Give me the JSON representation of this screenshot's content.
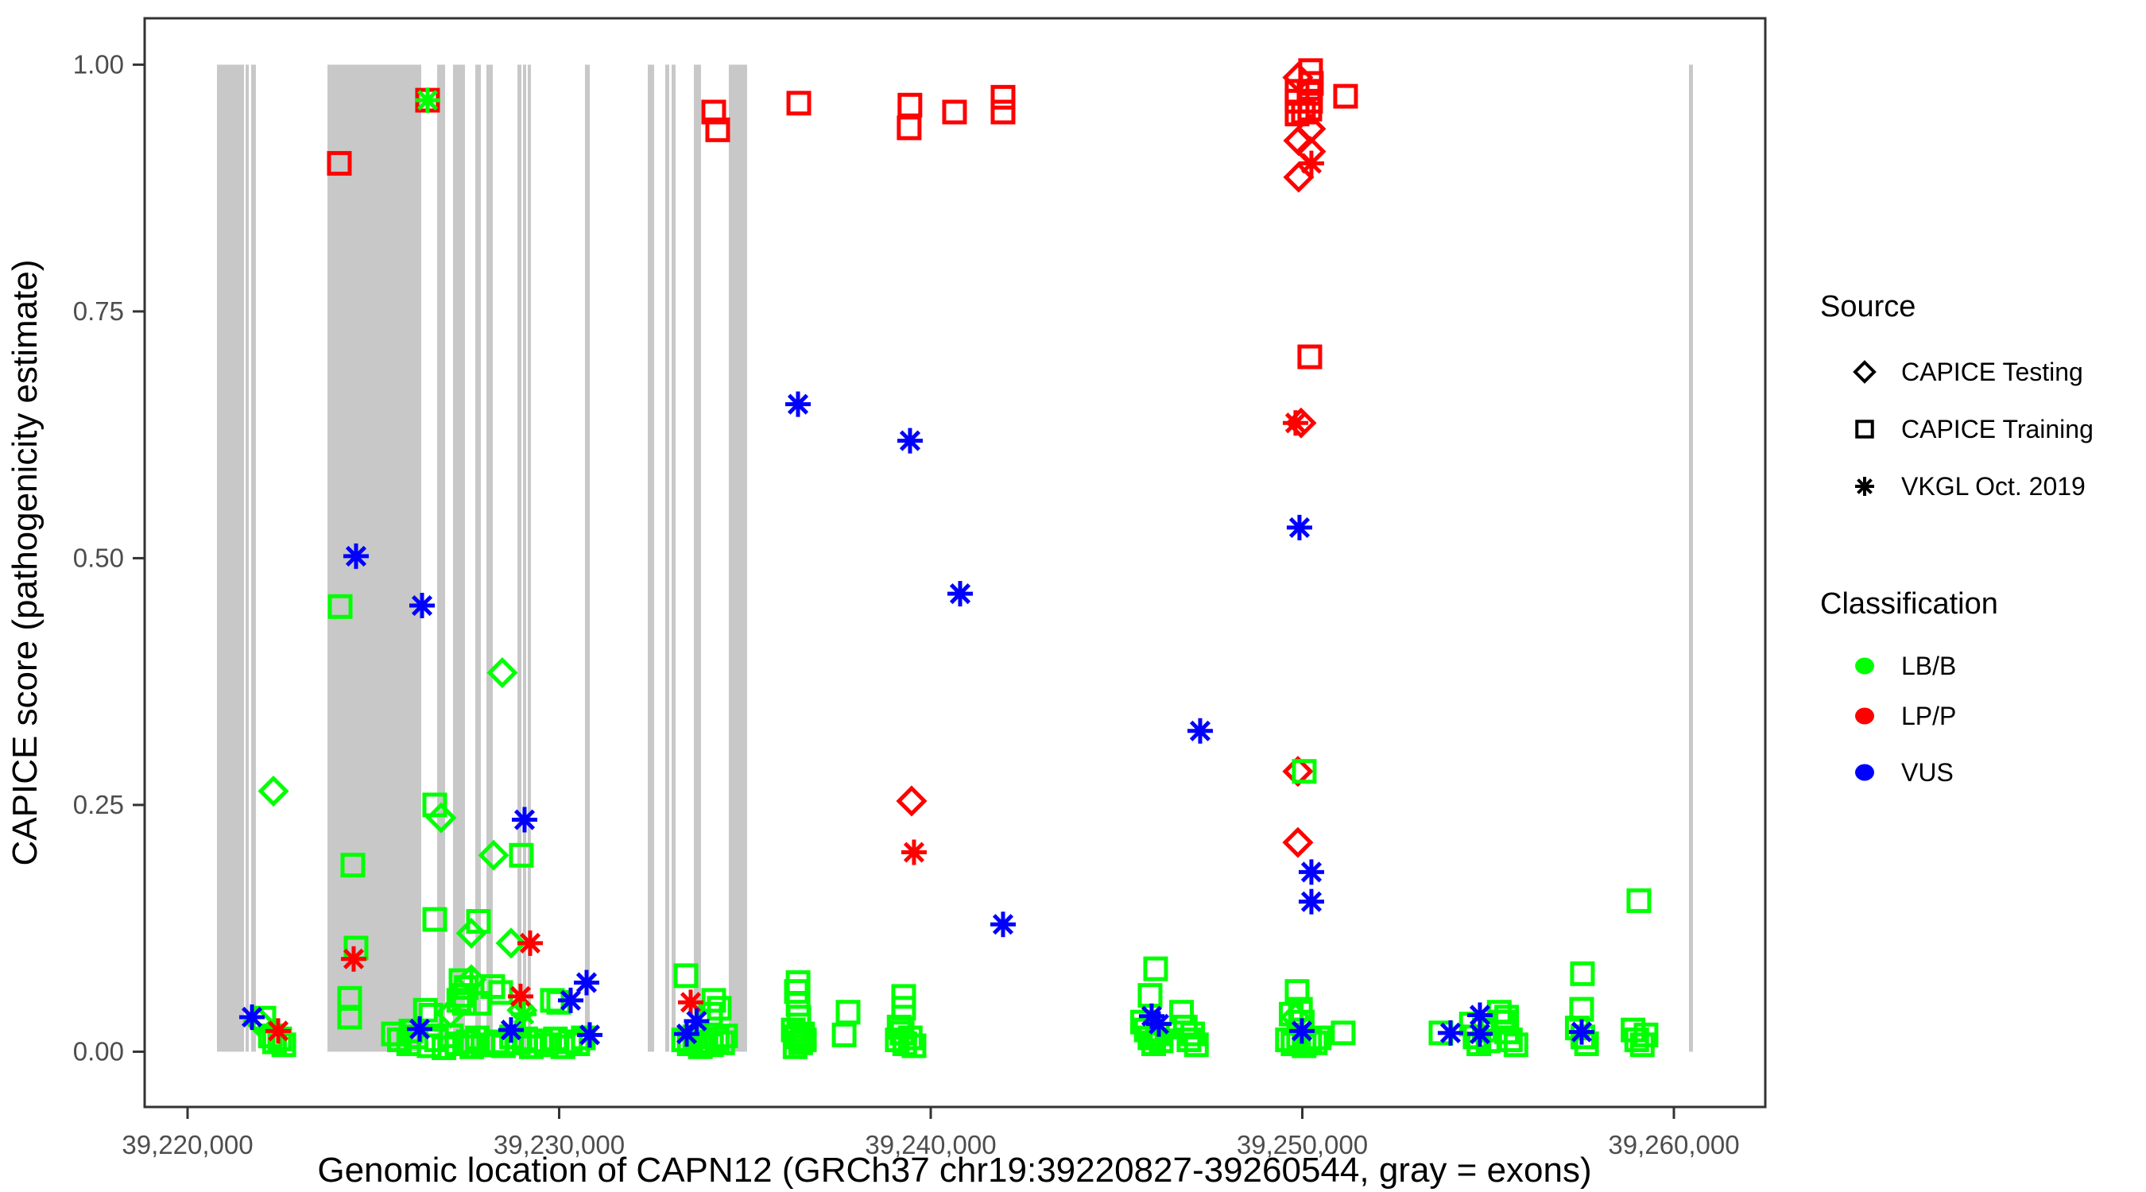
{
  "figure_title": "",
  "legend": {
    "source_title": "Source",
    "source_items": [
      {
        "label": "CAPICE Testing",
        "shape": "diamond"
      },
      {
        "label": "CAPICE Training",
        "shape": "square"
      },
      {
        "label": "VKGL Oct. 2019",
        "shape": "asterisk"
      }
    ],
    "classification_title": "Classification",
    "classification_items": [
      {
        "label": "LB/B",
        "color": "#00FF00"
      },
      {
        "label": "LP/P",
        "color": "#FF0000"
      },
      {
        "label": "VUS",
        "color": "#0000FF"
      }
    ]
  },
  "colors": {
    "lb_b": "#00FF00",
    "lp_p": "#FF0000",
    "vus": "#0000FF",
    "exon_gray": "#C8C8C8",
    "panel_border": "#333333",
    "tick_text": "#4D4D4D"
  },
  "chart_data": {
    "type": "scatter",
    "title": "",
    "xlabel": "Genomic location of CAPN12 (GRCh37 chr19:39220827-39260544, gray = exons)",
    "ylabel": "CAPICE score (pathogenicity estimate)",
    "x_domain": [
      39218845,
      39262460
    ],
    "y_domain": [
      -0.056,
      1.047
    ],
    "grid": false,
    "legend_position": "right",
    "x_ticks": [
      {
        "v": 39220000,
        "label": "39,220,000"
      },
      {
        "v": 39230000,
        "label": "39,230,000"
      },
      {
        "v": 39240000,
        "label": "39,240,000"
      },
      {
        "v": 39250000,
        "label": "39,250,000"
      },
      {
        "v": 39260000,
        "label": "39,260,000"
      }
    ],
    "y_ticks": [
      {
        "v": 0.0,
        "label": "0.00"
      },
      {
        "v": 0.25,
        "label": "0.25"
      },
      {
        "v": 0.5,
        "label": "0.50"
      },
      {
        "v": 0.75,
        "label": "0.75"
      },
      {
        "v": 1.0,
        "label": "1.00"
      }
    ],
    "exons_note": "gray vertical bands = exons of CAPN12, drawn from score 0 to 1",
    "exons": [
      [
        39220791,
        39221519
      ],
      [
        39221561,
        39221647
      ],
      [
        39221711,
        39221839
      ],
      [
        39223765,
        39226289
      ],
      [
        39226717,
        39226931
      ],
      [
        39227144,
        39227465
      ],
      [
        39227743,
        39227893
      ],
      [
        39228043,
        39228214
      ],
      [
        39228877,
        39228984
      ],
      [
        39229027,
        39229112
      ],
      [
        39229155,
        39229241
      ],
      [
        39230695,
        39230824
      ],
      [
        39232385,
        39232556
      ],
      [
        39232856,
        39232962
      ],
      [
        39233027,
        39233133
      ],
      [
        39233625,
        39233817
      ],
      [
        39234566,
        39235058
      ],
      [
        39260406,
        39260513
      ]
    ],
    "encoding": {
      "point_format": "[genomic_position_bp, capice_score, source_shape, classification_color]",
      "source_shapes": {
        "d": "CAPICE Testing (diamond)",
        "s": "CAPICE Training (square)",
        "a": "VKGL Oct. 2019 (asterisk)"
      },
      "classification_colors": {
        "g": "LB/B",
        "r": "LP/P",
        "b": "VUS"
      }
    },
    "points": [
      [
        39221733,
        0.035,
        "a",
        "b"
      ],
      [
        39221904,
        0.031,
        "d",
        "g"
      ],
      [
        39222053,
        0.034,
        "s",
        "g"
      ],
      [
        39222230,
        0.016,
        "s",
        "g"
      ],
      [
        39222340,
        0.01,
        "s",
        "g"
      ],
      [
        39222438,
        0.021,
        "a",
        "r"
      ],
      [
        39222480,
        0.013,
        "s",
        "g"
      ],
      [
        39222590,
        0.007,
        "s",
        "g"
      ],
      [
        39222310,
        0.264,
        "d",
        "g"
      ],
      [
        39224085,
        0.9,
        "s",
        "r"
      ],
      [
        39224107,
        0.451,
        "s",
        "g"
      ],
      [
        39224534,
        0.502,
        "a",
        "b"
      ],
      [
        39224449,
        0.189,
        "s",
        "g"
      ],
      [
        39224534,
        0.105,
        "s",
        "g"
      ],
      [
        39224470,
        0.094,
        "a",
        "r"
      ],
      [
        39224363,
        0.054,
        "s",
        "g"
      ],
      [
        39224363,
        0.035,
        "s",
        "g"
      ],
      [
        39225540,
        0.018,
        "s",
        "g"
      ],
      [
        39225700,
        0.012,
        "s",
        "g"
      ],
      [
        39225950,
        0.008,
        "s",
        "g"
      ],
      [
        39226010,
        0.021,
        "s",
        "g"
      ],
      [
        39226150,
        0.015,
        "s",
        "g"
      ],
      [
        39226246,
        0.023,
        "a",
        "b"
      ],
      [
        39226310,
        0.452,
        "a",
        "b"
      ],
      [
        39226459,
        0.964,
        "s",
        "r"
      ],
      [
        39226459,
        0.964,
        "a",
        "g"
      ],
      [
        39226400,
        0.042,
        "s",
        "g"
      ],
      [
        39226550,
        0.037,
        "s",
        "g"
      ],
      [
        39226652,
        0.25,
        "s",
        "g"
      ],
      [
        39226823,
        0.237,
        "d",
        "g"
      ],
      [
        39226652,
        0.134,
        "s",
        "g"
      ],
      [
        39227829,
        0.132,
        "s",
        "g"
      ],
      [
        39227636,
        0.12,
        "d",
        "g"
      ],
      [
        39227080,
        0.039,
        "d",
        "g"
      ],
      [
        39227358,
        0.072,
        "s",
        "g"
      ],
      [
        39227636,
        0.073,
        "d",
        "g"
      ],
      [
        39227500,
        0.065,
        "s",
        "g"
      ],
      [
        39227400,
        0.057,
        "s",
        "g"
      ],
      [
        39227300,
        0.052,
        "s",
        "g"
      ],
      [
        39227450,
        0.049,
        "s",
        "g"
      ],
      [
        39227850,
        0.049,
        "s",
        "g"
      ],
      [
        39226500,
        0.006,
        "s",
        "g"
      ],
      [
        39226700,
        0.012,
        "s",
        "g"
      ],
      [
        39226900,
        0.004,
        "s",
        "g"
      ],
      [
        39227100,
        0.016,
        "s",
        "g"
      ],
      [
        39227250,
        0.008,
        "s",
        "g"
      ],
      [
        39227550,
        0.01,
        "s",
        "g"
      ],
      [
        39227650,
        0.005,
        "s",
        "g"
      ],
      [
        39227800,
        0.014,
        "s",
        "g"
      ],
      [
        39227950,
        0.007,
        "s",
        "g"
      ],
      [
        39228214,
        0.066,
        "s",
        "g"
      ],
      [
        39228427,
        0.06,
        "s",
        "g"
      ],
      [
        39228962,
        0.056,
        "a",
        "r"
      ],
      [
        39228235,
        0.199,
        "d",
        "g"
      ],
      [
        39228983,
        0.199,
        "s",
        "g"
      ],
      [
        39228470,
        0.384,
        "d",
        "g"
      ],
      [
        39228705,
        0.11,
        "d",
        "g"
      ],
      [
        39229219,
        0.11,
        "a",
        "r"
      ],
      [
        39229069,
        0.235,
        "a",
        "b"
      ],
      [
        39228705,
        0.022,
        "a",
        "b"
      ],
      [
        39229050,
        0.038,
        "a",
        "g"
      ],
      [
        39229000,
        0.042,
        "d",
        "g"
      ],
      [
        39228300,
        0.01,
        "s",
        "g"
      ],
      [
        39228500,
        0.006,
        "s",
        "g"
      ],
      [
        39228720,
        0.015,
        "s",
        "g"
      ],
      [
        39228900,
        0.009,
        "s",
        "g"
      ],
      [
        39229100,
        0.013,
        "s",
        "g"
      ],
      [
        39229250,
        0.005,
        "s",
        "g"
      ],
      [
        39229818,
        0.052,
        "s",
        "g"
      ],
      [
        39229989,
        0.05,
        "s",
        "g"
      ],
      [
        39230310,
        0.052,
        "a",
        "b"
      ],
      [
        39230738,
        0.07,
        "a",
        "b"
      ],
      [
        39230823,
        0.017,
        "a",
        "b"
      ],
      [
        39229500,
        0.011,
        "s",
        "g"
      ],
      [
        39229650,
        0.007,
        "s",
        "g"
      ],
      [
        39229900,
        0.013,
        "s",
        "g"
      ],
      [
        39230100,
        0.005,
        "s",
        "g"
      ],
      [
        39230300,
        0.01,
        "s",
        "g"
      ],
      [
        39230500,
        0.008,
        "s",
        "g"
      ],
      [
        39230650,
        0.014,
        "s",
        "g"
      ],
      [
        39233412,
        0.077,
        "s",
        "g"
      ],
      [
        39233540,
        0.05,
        "a",
        "r"
      ],
      [
        39234160,
        0.052,
        "s",
        "g"
      ],
      [
        39234310,
        0.044,
        "s",
        "g"
      ],
      [
        39234075,
        0.038,
        "s",
        "g"
      ],
      [
        39233700,
        0.031,
        "a",
        "b"
      ],
      [
        39233433,
        0.018,
        "a",
        "b"
      ],
      [
        39233350,
        0.012,
        "s",
        "g"
      ],
      [
        39233500,
        0.008,
        "s",
        "g"
      ],
      [
        39233650,
        0.015,
        "s",
        "g"
      ],
      [
        39233800,
        0.005,
        "s",
        "g"
      ],
      [
        39233950,
        0.01,
        "s",
        "g"
      ],
      [
        39234100,
        0.007,
        "s",
        "g"
      ],
      [
        39234250,
        0.013,
        "s",
        "g"
      ],
      [
        39234400,
        0.009,
        "s",
        "g"
      ],
      [
        39234480,
        0.016,
        "s",
        "g"
      ],
      [
        39234160,
        0.952,
        "s",
        "r"
      ],
      [
        39234267,
        0.934,
        "s",
        "r"
      ],
      [
        39236450,
        0.961,
        "s",
        "r"
      ],
      [
        39236428,
        0.656,
        "a",
        "b"
      ],
      [
        39236430,
        0.07,
        "s",
        "g"
      ],
      [
        39236385,
        0.061,
        "s",
        "g"
      ],
      [
        39236430,
        0.048,
        "s",
        "g"
      ],
      [
        39236450,
        0.035,
        "s",
        "g"
      ],
      [
        39236300,
        0.022,
        "s",
        "g"
      ],
      [
        39236400,
        0.015,
        "s",
        "g"
      ],
      [
        39236500,
        0.009,
        "s",
        "g"
      ],
      [
        39236350,
        0.005,
        "s",
        "g"
      ],
      [
        39236550,
        0.018,
        "s",
        "g"
      ],
      [
        39236600,
        0.012,
        "s",
        "g"
      ],
      [
        39237775,
        0.04,
        "s",
        "g"
      ],
      [
        39237670,
        0.017,
        "s",
        "g"
      ],
      [
        39239272,
        0.056,
        "s",
        "g"
      ],
      [
        39239272,
        0.044,
        "s",
        "g"
      ],
      [
        39239230,
        0.019,
        "s",
        "g"
      ],
      [
        39239100,
        0.012,
        "s",
        "g"
      ],
      [
        39239300,
        0.008,
        "s",
        "g"
      ],
      [
        39239450,
        0.014,
        "s",
        "g"
      ],
      [
        39239550,
        0.006,
        "s",
        "g"
      ],
      [
        39239150,
        0.025,
        "s",
        "g"
      ],
      [
        39239440,
        0.959,
        "s",
        "r"
      ],
      [
        39239420,
        0.936,
        "s",
        "r"
      ],
      [
        39240641,
        0.952,
        "s",
        "r"
      ],
      [
        39241946,
        0.967,
        "s",
        "r"
      ],
      [
        39241946,
        0.952,
        "s",
        "r"
      ],
      [
        39239443,
        0.619,
        "a",
        "b"
      ],
      [
        39240791,
        0.464,
        "a",
        "b"
      ],
      [
        39239486,
        0.254,
        "d",
        "r"
      ],
      [
        39239550,
        0.202,
        "a",
        "r"
      ],
      [
        39241946,
        0.129,
        "a",
        "b"
      ],
      [
        39247251,
        0.325,
        "a",
        "b"
      ],
      [
        39246053,
        0.084,
        "s",
        "g"
      ],
      [
        39245903,
        0.057,
        "s",
        "g"
      ],
      [
        39245946,
        0.036,
        "a",
        "b"
      ],
      [
        39246139,
        0.028,
        "a",
        "b"
      ],
      [
        39245700,
        0.03,
        "s",
        "g"
      ],
      [
        39245800,
        0.022,
        "s",
        "g"
      ],
      [
        39245900,
        0.014,
        "s",
        "g"
      ],
      [
        39246000,
        0.008,
        "s",
        "g"
      ],
      [
        39246100,
        0.018,
        "s",
        "g"
      ],
      [
        39246200,
        0.011,
        "s",
        "g"
      ],
      [
        39246750,
        0.04,
        "s",
        "g"
      ],
      [
        39246850,
        0.025,
        "s",
        "g"
      ],
      [
        39246950,
        0.012,
        "s",
        "g"
      ],
      [
        39247050,
        0.018,
        "s",
        "g"
      ],
      [
        39247150,
        0.007,
        "s",
        "g"
      ],
      [
        39250223,
        0.994,
        "s",
        "r"
      ],
      [
        39250245,
        0.981,
        "s",
        "r"
      ],
      [
        39249860,
        0.973,
        "s",
        "r"
      ],
      [
        39250181,
        0.971,
        "s",
        "r"
      ],
      [
        39249860,
        0.963,
        "s",
        "r"
      ],
      [
        39250223,
        0.963,
        "s",
        "r"
      ],
      [
        39250031,
        0.952,
        "s",
        "r"
      ],
      [
        39249860,
        0.95,
        "s",
        "r"
      ],
      [
        39250202,
        0.955,
        "s",
        "r"
      ],
      [
        39249881,
        0.987,
        "d",
        "r"
      ],
      [
        39250223,
        0.935,
        "d",
        "r"
      ],
      [
        39249903,
        0.923,
        "d",
        "r"
      ],
      [
        39250223,
        0.912,
        "d",
        "r"
      ],
      [
        39249903,
        0.886,
        "d",
        "r"
      ],
      [
        39250245,
        0.9,
        "a",
        "r"
      ],
      [
        39251165,
        0.968,
        "s",
        "r"
      ],
      [
        39250202,
        0.704,
        "s",
        "r"
      ],
      [
        39249817,
        0.637,
        "a",
        "r"
      ],
      [
        39249967,
        0.637,
        "d",
        "r"
      ],
      [
        39249924,
        0.531,
        "a",
        "b"
      ],
      [
        39249881,
        0.284,
        "d",
        "r"
      ],
      [
        39250052,
        0.284,
        "s",
        "g"
      ],
      [
        39249881,
        0.212,
        "d",
        "r"
      ],
      [
        39250245,
        0.182,
        "a",
        "b"
      ],
      [
        39250245,
        0.152,
        "a",
        "b"
      ],
      [
        39249860,
        0.061,
        "s",
        "g"
      ],
      [
        39249817,
        0.035,
        "d",
        "g"
      ],
      [
        39249700,
        0.038,
        "s",
        "g"
      ],
      [
        39249950,
        0.043,
        "s",
        "g"
      ],
      [
        39250000,
        0.03,
        "s",
        "g"
      ],
      [
        39249988,
        0.021,
        "a",
        "b"
      ],
      [
        39249600,
        0.012,
        "s",
        "g"
      ],
      [
        39249750,
        0.008,
        "s",
        "g"
      ],
      [
        39249900,
        0.015,
        "s",
        "g"
      ],
      [
        39250050,
        0.006,
        "s",
        "g"
      ],
      [
        39250200,
        0.011,
        "s",
        "g"
      ],
      [
        39250350,
        0.009,
        "s",
        "g"
      ],
      [
        39250450,
        0.014,
        "s",
        "g"
      ],
      [
        39251100,
        0.019,
        "s",
        "g"
      ],
      [
        39253732,
        0.019,
        "s",
        "g"
      ],
      [
        39253988,
        0.019,
        "a",
        "b"
      ],
      [
        39254780,
        0.037,
        "a",
        "b"
      ],
      [
        39254780,
        0.018,
        "a",
        "b"
      ],
      [
        39254550,
        0.028,
        "s",
        "g"
      ],
      [
        39254650,
        0.015,
        "s",
        "g"
      ],
      [
        39254750,
        0.008,
        "s",
        "g"
      ],
      [
        39254900,
        0.022,
        "s",
        "g"
      ],
      [
        39255000,
        0.011,
        "s",
        "g"
      ],
      [
        39255300,
        0.04,
        "s",
        "g"
      ],
      [
        39255400,
        0.03,
        "s",
        "g"
      ],
      [
        39255500,
        0.02,
        "s",
        "g"
      ],
      [
        39255600,
        0.012,
        "s",
        "g"
      ],
      [
        39255750,
        0.007,
        "s",
        "g"
      ],
      [
        39255500,
        0.035,
        "s",
        "g"
      ],
      [
        39257539,
        0.079,
        "s",
        "g"
      ],
      [
        39257518,
        0.043,
        "s",
        "g"
      ],
      [
        39257400,
        0.024,
        "s",
        "g"
      ],
      [
        39257550,
        0.015,
        "s",
        "g"
      ],
      [
        39257650,
        0.008,
        "s",
        "g"
      ],
      [
        39257518,
        0.02,
        "a",
        "b"
      ],
      [
        39258900,
        0.022,
        "s",
        "g"
      ],
      [
        39259000,
        0.012,
        "s",
        "g"
      ],
      [
        39259150,
        0.007,
        "s",
        "g"
      ],
      [
        39259250,
        0.017,
        "s",
        "g"
      ],
      [
        39259058,
        0.153,
        "s",
        "g"
      ]
    ]
  }
}
